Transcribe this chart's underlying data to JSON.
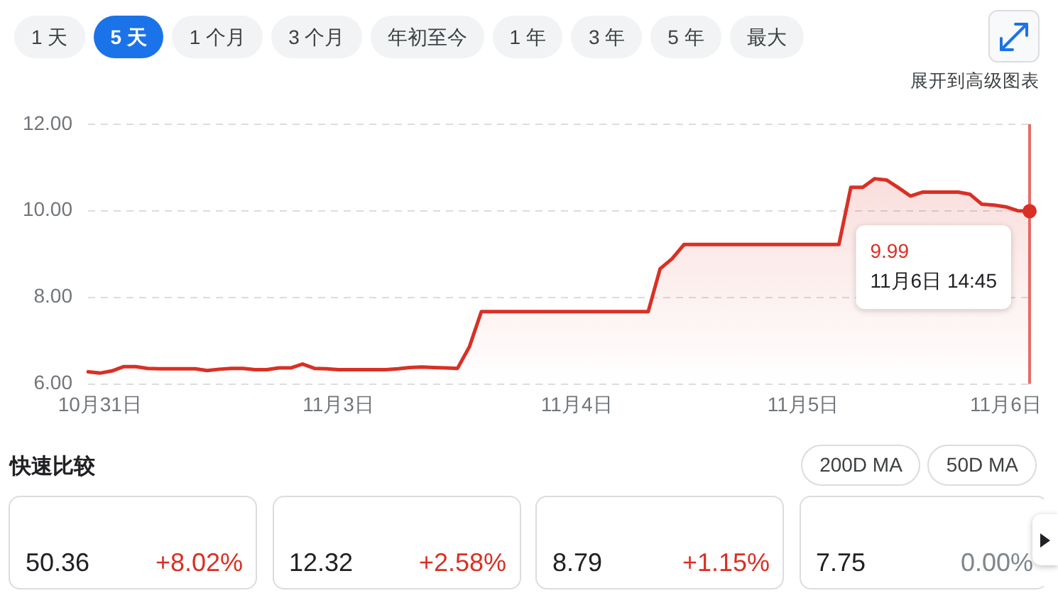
{
  "chart_data": [
    {
      "type": "other",
      "annotations": [
        "1 天",
        "5 天",
        "1 个月",
        "3 个月",
        "年初至今",
        "1 年",
        "3 年",
        "5 年",
        "最大",
        "展开到高级图表"
      ]
    },
    {
      "type": "area",
      "categories": [
        null,
        "10月31日",
        null,
        null,
        null,
        null,
        null,
        null,
        null,
        null,
        null,
        null,
        null,
        null,
        null,
        null,
        null,
        null,
        null,
        null,
        null,
        "11月3日",
        null,
        null,
        null,
        null,
        null,
        null,
        null,
        null,
        null,
        null,
        null,
        null,
        null,
        null,
        null,
        null,
        null,
        null,
        null,
        "11月4日",
        null,
        null,
        null,
        null,
        null,
        null,
        null,
        null,
        null,
        null,
        null,
        null,
        null,
        null,
        null,
        null,
        null,
        null,
        "11月5日",
        null,
        null,
        null,
        null,
        null,
        null,
        null,
        null,
        null,
        null,
        null,
        null,
        null,
        null,
        null,
        null,
        "11月6日",
        null,
        null
      ],
      "values": [
        6.28,
        6.25,
        6.3,
        6.4,
        6.4,
        6.36,
        6.35,
        6.35,
        6.35,
        6.35,
        6.31,
        6.34,
        6.36,
        6.36,
        6.33,
        6.33,
        6.37,
        6.37,
        6.46,
        6.36,
        6.35,
        6.33,
        6.33,
        6.33,
        6.33,
        6.33,
        6.35,
        6.38,
        6.39,
        6.38,
        6.37,
        6.36,
        6.86,
        7.67,
        7.67,
        7.67,
        7.67,
        7.67,
        7.67,
        7.67,
        7.67,
        7.67,
        7.67,
        7.67,
        7.67,
        7.67,
        7.67,
        7.67,
        8.66,
        8.89,
        9.22,
        9.22,
        9.22,
        9.22,
        9.22,
        9.22,
        9.22,
        9.22,
        9.22,
        9.22,
        9.22,
        9.22,
        9.22,
        9.22,
        10.54,
        10.54,
        10.74,
        10.71,
        10.53,
        10.34,
        10.43,
        10.43,
        10.43,
        10.43,
        10.38,
        10.15,
        10.13,
        10.09,
        10.0,
        9.99
      ],
      "color": "#d93025",
      "ylim": [
        6,
        12
      ],
      "yticks": [
        {
          "value": 6,
          "label": "6.00"
        },
        {
          "value": 8,
          "label": "8.00"
        },
        {
          "value": 10,
          "label": "10.00"
        },
        {
          "value": 12,
          "label": "12.00"
        }
      ],
      "grid": "y",
      "annotations": [
        "9.99",
        "11月6日 14:45"
      ]
    },
    {
      "type": "other",
      "title": "快速比较",
      "annotations": [
        "200D MA",
        "50D MA",
        "50.36",
        "+8.02%",
        "12.32",
        "+2.58%",
        "8.79",
        "+1.15%",
        "7.75",
        "0.00%"
      ],
      "colors": [
        "#d93025",
        "#d93025",
        "#d93025",
        "#80868b"
      ]
    }
  ]
}
